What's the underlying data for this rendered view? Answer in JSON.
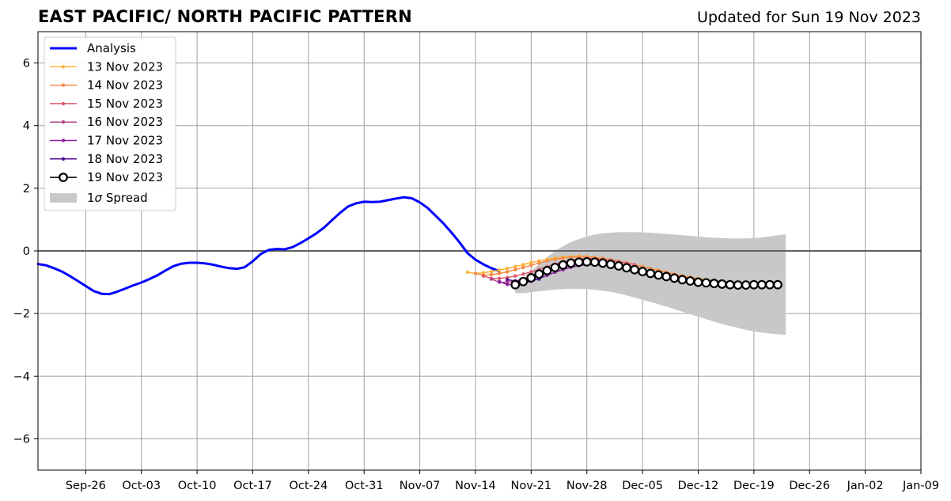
{
  "header": {
    "title": "EAST PACIFIC/ NORTH PACIFIC PATTERN",
    "updated": "Updated for Sun 19 Nov 2023"
  },
  "chart_data": {
    "type": "line",
    "title": "EAST PACIFIC/ NORTH PACIFIC PATTERN",
    "xlabel": "",
    "ylabel": "",
    "xlim": [
      "2023-09-20",
      "2024-01-09"
    ],
    "ylim": [
      -7,
      7
    ],
    "grid": true,
    "legend_position": "top-left",
    "x_ticks": [
      "Sep-26",
      "Oct-03",
      "Oct-10",
      "Oct-17",
      "Oct-24",
      "Oct-31",
      "Nov-07",
      "Nov-14",
      "Nov-21",
      "Nov-28",
      "Dec-05",
      "Dec-12",
      "Dec-19",
      "Dec-26",
      "Jan-02",
      "Jan-09"
    ],
    "x_tick_dates": [
      "2023-09-26",
      "2023-10-03",
      "2023-10-10",
      "2023-10-17",
      "2023-10-24",
      "2023-10-31",
      "2023-11-07",
      "2023-11-14",
      "2023-11-21",
      "2023-11-28",
      "2023-12-05",
      "2023-12-12",
      "2023-12-19",
      "2023-12-26",
      "2024-01-02",
      "2024-01-09"
    ],
    "y_ticks": [
      6,
      4,
      2,
      0,
      -2,
      -4,
      -6
    ],
    "y_tick_labels": [
      "6",
      "4",
      "2",
      "0",
      "−2",
      "−4",
      "−6"
    ],
    "analysis": {
      "name": "Analysis",
      "color": "#0000ff",
      "start": "2023-09-20",
      "values": [
        -0.42,
        -0.46,
        -0.55,
        -0.66,
        -0.8,
        -0.96,
        -1.12,
        -1.28,
        -1.37,
        -1.38,
        -1.3,
        -1.2,
        -1.1,
        -1.01,
        -0.9,
        -0.78,
        -0.63,
        -0.49,
        -0.41,
        -0.38,
        -0.38,
        -0.4,
        -0.44,
        -0.5,
        -0.55,
        -0.57,
        -0.52,
        -0.33,
        -0.1,
        0.03,
        0.06,
        0.05,
        0.12,
        0.25,
        0.4,
        0.56,
        0.75,
        0.99,
        1.22,
        1.42,
        1.52,
        1.57,
        1.56,
        1.57,
        1.62,
        1.67,
        1.71,
        1.68,
        1.55,
        1.37,
        1.12,
        0.87,
        0.58,
        0.27,
        -0.07,
        -0.28,
        -0.43,
        -0.55,
        -0.65
      ]
    },
    "forecasts": [
      {
        "name": "13 Nov 2023",
        "color": "#fbb43c",
        "start": "2023-11-13",
        "values": [
          -0.68,
          -0.72,
          -0.7,
          -0.66,
          -0.61,
          -0.56,
          -0.5,
          -0.44,
          -0.37,
          -0.32,
          -0.27,
          -0.23,
          -0.2,
          -0.18,
          -0.17,
          -0.18,
          -0.2,
          -0.24,
          -0.28,
          -0.33,
          -0.38,
          -0.44,
          -0.5,
          -0.56,
          -0.62,
          -0.68,
          -0.74,
          -0.79,
          -0.84,
          -0.88,
          -0.92,
          -0.95,
          -0.97,
          -0.99,
          -1.0
        ]
      },
      {
        "name": "14 Nov 2023",
        "color": "#f58a46",
        "start": "2023-11-14",
        "values": [
          -0.72,
          -0.78,
          -0.76,
          -0.72,
          -0.67,
          -0.6,
          -0.53,
          -0.46,
          -0.39,
          -0.32,
          -0.27,
          -0.23,
          -0.2,
          -0.19,
          -0.19,
          -0.21,
          -0.24,
          -0.28,
          -0.33,
          -0.38,
          -0.44,
          -0.5,
          -0.56,
          -0.62,
          -0.68,
          -0.74,
          -0.8,
          -0.85,
          -0.89,
          -0.93,
          -0.96,
          -0.98,
          -1.0,
          -1.01,
          -1.02
        ]
      },
      {
        "name": "15 Nov 2023",
        "color": "#e05c6e",
        "start": "2023-11-15",
        "values": [
          -0.8,
          -0.88,
          -0.88,
          -0.85,
          -0.8,
          -0.74,
          -0.67,
          -0.59,
          -0.5,
          -0.42,
          -0.35,
          -0.29,
          -0.26,
          -0.24,
          -0.25,
          -0.27,
          -0.3,
          -0.34,
          -0.39,
          -0.44
        ]
      },
      {
        "name": "16 Nov 2023",
        "color": "#b5458c",
        "start": "2023-11-16",
        "values": [
          -0.9,
          -1.0,
          -1.0,
          -0.96,
          -0.9,
          -0.82,
          -0.73,
          -0.64,
          -0.56,
          -0.48,
          -0.42,
          -0.38,
          -0.36,
          -0.36,
          -0.38,
          -0.41,
          -0.45
        ]
      },
      {
        "name": "17 Nov 2023",
        "color": "#8a1fa0",
        "start": "2023-11-17",
        "values": [
          -0.98,
          -1.07,
          -1.08,
          -1.04,
          -0.97,
          -0.88,
          -0.78,
          -0.68,
          -0.6,
          -0.52,
          -0.47,
          -0.44,
          -0.44,
          -0.46,
          -0.5,
          -0.55
        ]
      },
      {
        "name": "18 Nov 2023",
        "color": "#4f0a96",
        "start": "2023-11-18",
        "values": [
          -0.92,
          -0.96,
          -0.97,
          -0.95,
          -0.9
        ]
      },
      {
        "name": "19 Nov 2023",
        "color": "#000000",
        "start": "2023-11-19",
        "values": [
          -1.08,
          -0.98,
          -0.86,
          -0.74,
          -0.63,
          -0.53,
          -0.45,
          -0.39,
          -0.36,
          -0.35,
          -0.36,
          -0.39,
          -0.43,
          -0.48,
          -0.54,
          -0.6,
          -0.66,
          -0.72,
          -0.77,
          -0.82,
          -0.87,
          -0.92,
          -0.96,
          -1.0,
          -1.02,
          -1.04,
          -1.06,
          -1.08,
          -1.09,
          -1.09,
          -1.08,
          -1.08,
          -1.08,
          -1.08
        ]
      }
    ],
    "spread": {
      "name": "1σ Spread",
      "label_prefix": "1",
      "label_symbol": "σ",
      "label_suffix": " Spread",
      "color": "#c8c8c8",
      "start": "2023-11-19",
      "upper": [
        -1.0,
        -0.85,
        -0.65,
        -0.42,
        -0.2,
        0.0,
        0.15,
        0.28,
        0.38,
        0.46,
        0.52,
        0.56,
        0.58,
        0.6,
        0.6,
        0.6,
        0.59,
        0.58,
        0.56,
        0.54,
        0.52,
        0.5,
        0.48,
        0.46,
        0.44,
        0.42,
        0.41,
        0.4,
        0.4,
        0.4,
        0.41,
        0.43,
        0.46,
        0.5,
        0.53
      ],
      "lower": [
        -1.35,
        -1.35,
        -1.32,
        -1.29,
        -1.26,
        -1.24,
        -1.22,
        -1.21,
        -1.21,
        -1.22,
        -1.24,
        -1.27,
        -1.31,
        -1.36,
        -1.42,
        -1.49,
        -1.56,
        -1.63,
        -1.7,
        -1.78,
        -1.86,
        -1.94,
        -2.02,
        -2.1,
        -2.18,
        -2.26,
        -2.33,
        -2.4,
        -2.46,
        -2.52,
        -2.57,
        -2.61,
        -2.64,
        -2.66,
        -2.68
      ]
    }
  }
}
